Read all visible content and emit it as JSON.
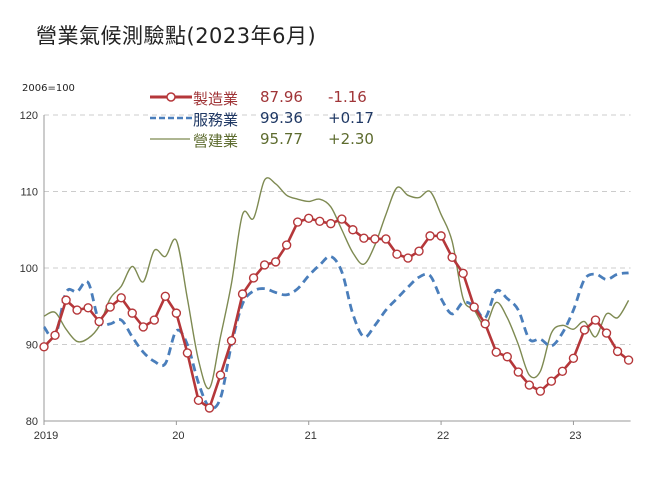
{
  "title": "營業氣候測驗點(2023年6月)",
  "unit_label": "2006=100",
  "colors": {
    "manufacturing": "#b5373a",
    "services": "#4a7ebb",
    "construction": "#7e8a52",
    "grid": "#cccccc",
    "axis": "#999999"
  },
  "legend": [
    {
      "name": "製造業",
      "value": "87.96",
      "change": "-1.16",
      "color": "#a03538",
      "style": "solid-marker"
    },
    {
      "name": "服務業",
      "value": "99.36",
      "change": "+0.17",
      "color": "#1f3864",
      "style": "dashed"
    },
    {
      "name": "營建業",
      "value": "95.77",
      "change": "+2.30",
      "color": "#5d6b2e",
      "style": "solid-thin"
    }
  ],
  "chart_data": {
    "type": "line",
    "title": "營業氣候測驗點(2023年6月)",
    "xlabel": "",
    "ylabel": "2006=100",
    "ylim": [
      80,
      120
    ],
    "yticks": [
      80,
      90,
      100,
      110,
      120
    ],
    "xtick_labels": [
      "2019",
      "20",
      "21",
      "22",
      "23"
    ],
    "grid": true,
    "legend_position": "top-center",
    "x": [
      "2019-01",
      "2019-02",
      "2019-03",
      "2019-04",
      "2019-05",
      "2019-06",
      "2019-07",
      "2019-08",
      "2019-09",
      "2019-10",
      "2019-11",
      "2019-12",
      "2020-01",
      "2020-02",
      "2020-03",
      "2020-04",
      "2020-05",
      "2020-06",
      "2020-07",
      "2020-08",
      "2020-09",
      "2020-10",
      "2020-11",
      "2020-12",
      "2021-01",
      "2021-02",
      "2021-03",
      "2021-04",
      "2021-05",
      "2021-06",
      "2021-07",
      "2021-08",
      "2021-09",
      "2021-10",
      "2021-11",
      "2021-12",
      "2022-01",
      "2022-02",
      "2022-03",
      "2022-04",
      "2022-05",
      "2022-06",
      "2022-07",
      "2022-08",
      "2022-09",
      "2022-10",
      "2022-11",
      "2022-12",
      "2023-01",
      "2023-02",
      "2023-03",
      "2023-04",
      "2023-05",
      "2023-06"
    ],
    "series": [
      {
        "name": "製造業",
        "latest": 87.96,
        "change": -1.16,
        "values": [
          89.7,
          91.2,
          95.8,
          94.5,
          94.8,
          93.0,
          94.9,
          96.1,
          94.1,
          92.3,
          93.2,
          96.3,
          94.1,
          88.9,
          82.7,
          81.7,
          86.0,
          90.5,
          96.6,
          98.7,
          100.4,
          100.8,
          103.0,
          106.0,
          106.5,
          106.1,
          105.8,
          106.4,
          105.0,
          103.9,
          103.8,
          103.8,
          101.8,
          101.3,
          102.2,
          104.2,
          104.2,
          101.4,
          99.3,
          94.9,
          92.7,
          89.0,
          88.4,
          86.4,
          84.7,
          83.9,
          85.2,
          86.5,
          88.2,
          91.9,
          93.2,
          91.5,
          89.1,
          87.96
        ]
      },
      {
        "name": "服務業",
        "latest": 99.36,
        "change": 0.17,
        "values": [
          92.3,
          91.0,
          96.8,
          96.9,
          98.1,
          93.0,
          92.7,
          93.2,
          91.0,
          89.0,
          87.8,
          87.5,
          91.8,
          90.0,
          85.0,
          81.8,
          83.0,
          90.0,
          95.3,
          97.0,
          97.3,
          96.8,
          96.5,
          97.3,
          99.0,
          100.4,
          101.5,
          99.5,
          94.0,
          91.0,
          92.5,
          94.5,
          96.0,
          97.5,
          98.8,
          99.0,
          96.0,
          94.0,
          95.5,
          95.0,
          93.5,
          97.0,
          96.0,
          94.5,
          90.7,
          90.7,
          89.8,
          91.5,
          94.5,
          98.5,
          99.2,
          98.5,
          99.2,
          99.36
        ]
      },
      {
        "name": "營建業",
        "latest": 95.77,
        "change": 2.3,
        "values": [
          93.7,
          94.2,
          92.0,
          90.4,
          90.8,
          92.4,
          96.0,
          97.6,
          100.2,
          98.2,
          102.3,
          101.5,
          103.6,
          96.0,
          88.0,
          84.3,
          91.0,
          98.0,
          107.0,
          106.5,
          111.5,
          111.0,
          109.5,
          109.0,
          108.7,
          109.0,
          108.0,
          105.0,
          102.0,
          100.5,
          103.0,
          107.0,
          110.5,
          109.5,
          109.2,
          110.0,
          107.0,
          103.5,
          96.0,
          94.5,
          92.5,
          95.5,
          93.5,
          90.0,
          86.0,
          86.5,
          91.5,
          92.5,
          92.0,
          93.0,
          91.0,
          94.0,
          93.5,
          95.77
        ]
      }
    ]
  }
}
